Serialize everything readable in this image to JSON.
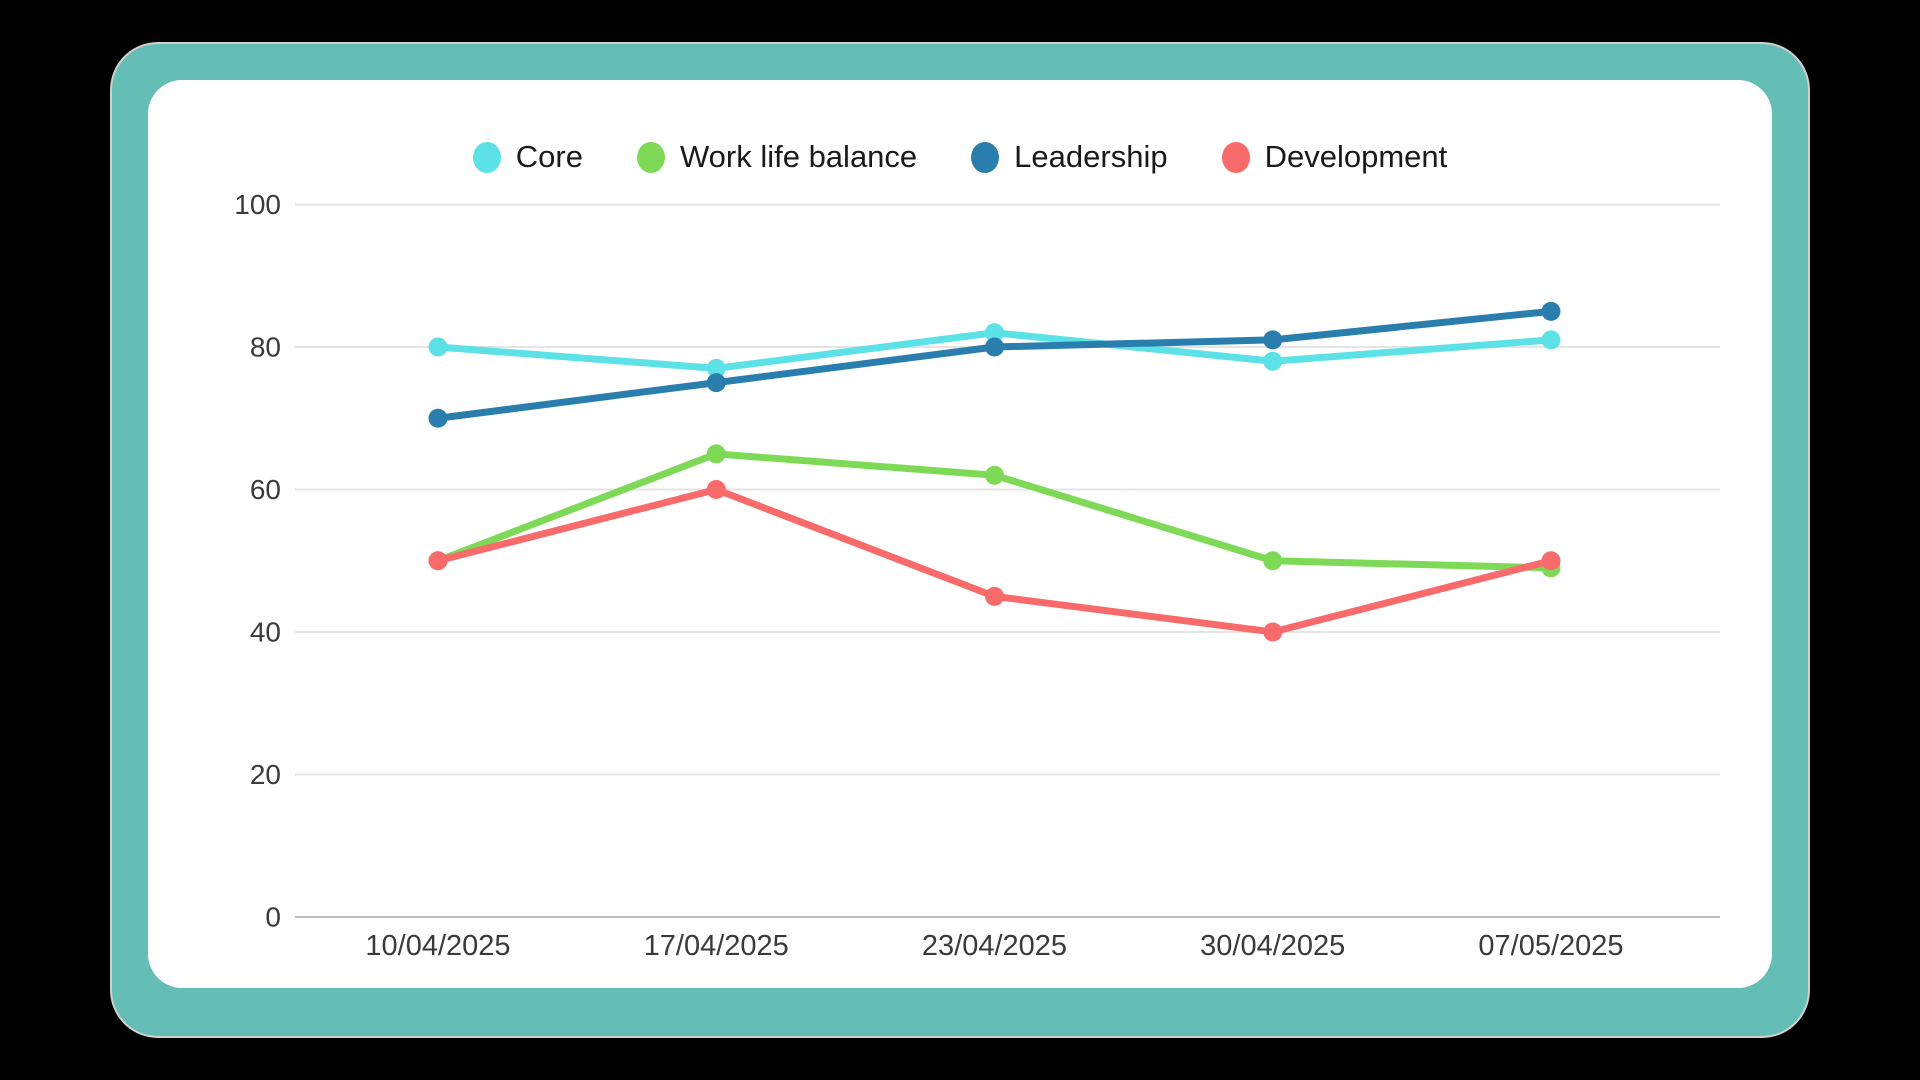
{
  "styles": {
    "background": "#000000",
    "frame_fill": "#65BEB5",
    "frame_outline": "#cfcfcf",
    "card_fill": "#ffffff",
    "grid_color": "#e4e4e4",
    "axis_color": "#bdbdbd",
    "tick_text_color": "#3a3a3a",
    "legend_text_color": "#1a1a1a"
  },
  "chart_data": {
    "type": "line",
    "title": "",
    "xlabel": "",
    "ylabel": "",
    "x": [
      "10/04/2025",
      "17/04/2025",
      "23/04/2025",
      "30/04/2025",
      "07/05/2025"
    ],
    "series": [
      {
        "name": "Core",
        "color": "#5CE1E6",
        "values": [
          80,
          77,
          82,
          78,
          81
        ]
      },
      {
        "name": "Work life balance",
        "color": "#7ED957",
        "values": [
          50,
          65,
          62,
          50,
          49
        ]
      },
      {
        "name": "Leadership",
        "color": "#2A7EAD",
        "values": [
          70,
          75,
          80,
          81,
          85
        ]
      },
      {
        "name": "Development",
        "color": "#F96B6B",
        "values": [
          50,
          60,
          45,
          40,
          50
        ]
      }
    ],
    "ylim": [
      0,
      100
    ],
    "yticks": [
      0,
      20,
      40,
      60,
      80,
      100
    ],
    "grid": true,
    "legend_position": "top",
    "marker": "circle"
  }
}
